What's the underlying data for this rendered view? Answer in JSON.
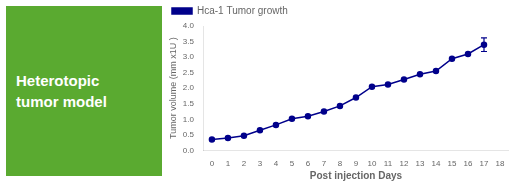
{
  "chart_data": {
    "type": "line",
    "title": "Heterotopic\ntumor model",
    "x_label": "Post injection Days",
    "y_label": "Tumor volume (mm x1U )",
    "x": [
      0,
      1,
      2,
      3,
      4,
      5,
      6,
      7,
      8,
      9,
      10,
      11,
      12,
      13,
      14,
      15,
      16,
      17
    ],
    "series": [
      {
        "name": "Hca-1 Tumor growth",
        "color": "#00008B",
        "marker": "circle",
        "values": [
          0.35,
          0.4,
          0.47,
          0.65,
          0.82,
          1.02,
          1.1,
          1.25,
          1.43,
          1.7,
          2.05,
          2.12,
          2.28,
          2.45,
          2.55,
          2.95,
          3.1,
          3.4
        ],
        "yerr": [
          null,
          null,
          null,
          null,
          null,
          null,
          null,
          null,
          null,
          null,
          null,
          null,
          null,
          null,
          null,
          null,
          null,
          0.22
        ]
      }
    ],
    "xlim": [
      -0.5,
      18.5
    ],
    "xticks": [
      0,
      1,
      2,
      3,
      4,
      5,
      6,
      7,
      8,
      9,
      10,
      11,
      12,
      13,
      14,
      15,
      16,
      17,
      18
    ],
    "ylim": [
      0.0,
      4.0
    ],
    "yticks": [
      {
        "value": 0,
        "label": "0.0"
      },
      0.5,
      {
        "value": 1,
        "label": "1.0"
      },
      1.5,
      {
        "value": 2,
        "label": "2.0"
      },
      2.5,
      {
        "value": 3,
        "label": "3.0"
      },
      3.5,
      {
        "value": 4,
        "label": "4.0"
      }
    ],
    "grid": false,
    "legend": "upper left"
  }
}
